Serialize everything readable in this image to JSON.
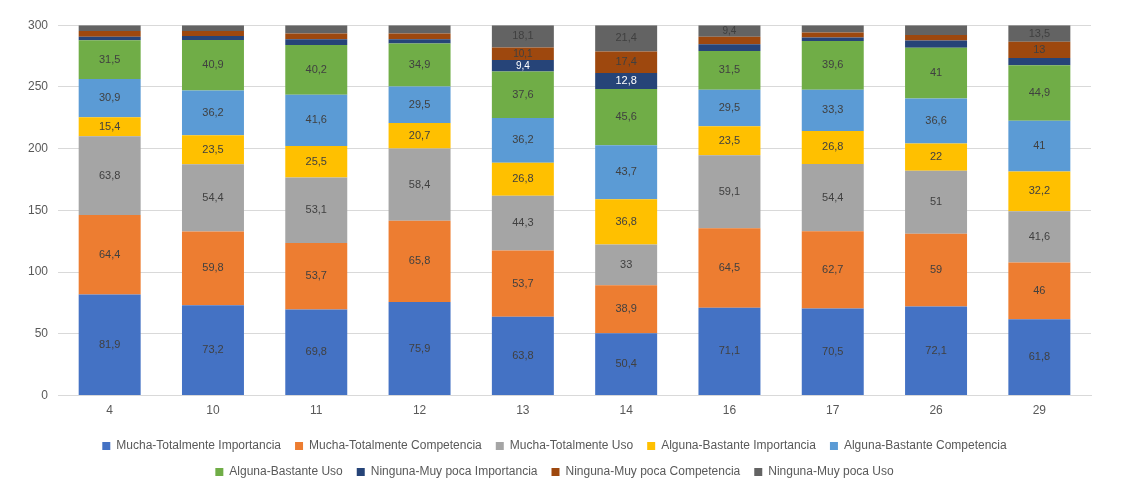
{
  "chart_data": {
    "type": "bar",
    "stacked": true,
    "categories": [
      "4",
      "10",
      "11",
      "12",
      "13",
      "14",
      "16",
      "17",
      "26",
      "29"
    ],
    "ylim": [
      0,
      300
    ],
    "yticks": [
      0,
      50,
      100,
      150,
      200,
      250,
      300
    ],
    "grid": "y",
    "legend": "bottom",
    "series": [
      {
        "name": "Mucha-Totalmente Importancia",
        "color": "#4472c4",
        "values": [
          81.9,
          73.2,
          69.8,
          75.9,
          63.8,
          50.4,
          71.1,
          70.5,
          72.1,
          61.8
        ],
        "value_labels": [
          "81,9",
          "73,2",
          "69,8",
          "75,9",
          "63,8",
          "50,4",
          "71,1",
          "70,5",
          "72,1",
          "61,8"
        ]
      },
      {
        "name": "Mucha-Totalmente Competencia",
        "color": "#ed7d31",
        "values": [
          64.4,
          59.8,
          53.7,
          65.8,
          53.7,
          38.9,
          64.5,
          62.7,
          59,
          46
        ],
        "value_labels": [
          "64,4",
          "59,8",
          "53,7",
          "65,8",
          "53,7",
          "38,9",
          "64,5",
          "62,7",
          "59",
          "46"
        ]
      },
      {
        "name": "Mucha-Totalmente Uso",
        "color": "#a5a5a5",
        "values": [
          63.8,
          54.4,
          53.1,
          58.4,
          44.3,
          33,
          59.1,
          54.4,
          51,
          41.6
        ],
        "value_labels": [
          "63,8",
          "54,4",
          "53,1",
          "58,4",
          "44,3",
          "33",
          "59,1",
          "54,4",
          "51",
          "41,6"
        ]
      },
      {
        "name": "Alguna-Bastante Importancia",
        "color": "#ffc000",
        "values": [
          15.4,
          23.5,
          25.5,
          20.7,
          26.8,
          36.8,
          23.5,
          26.8,
          22,
          32.2
        ],
        "value_labels": [
          "15,4",
          "23,5",
          "25,5",
          "20,7",
          "26,8",
          "36,8",
          "23,5",
          "26,8",
          "22",
          "32,2"
        ]
      },
      {
        "name": "Alguna-Bastante Competencia",
        "color": "#5b9bd5",
        "values": [
          30.9,
          36.2,
          41.6,
          29.5,
          36.2,
          43.7,
          29.5,
          33.3,
          36.6,
          41
        ],
        "value_labels": [
          "30,9",
          "36,2",
          "41,6",
          "29,5",
          "36,2",
          "43,7",
          "29,5",
          "33,3",
          "36,6",
          "41"
        ]
      },
      {
        "name": "Alguna-Bastante Uso",
        "color": "#70ad47",
        "values": [
          31.5,
          40.9,
          40.2,
          34.9,
          37.6,
          45.6,
          31.5,
          39.6,
          41,
          44.9
        ],
        "value_labels": [
          "31,5",
          "40,9",
          "40,2",
          "34,9",
          "37,6",
          "45,6",
          "31,5",
          "39,6",
          "41",
          "44,9"
        ]
      },
      {
        "name": "Ninguna-Muy poca Importancia",
        "color": "#264478",
        "values": [
          2.7,
          3.3,
          4.7,
          3.4,
          9.4,
          12.8,
          5.4,
          2.7,
          5.9,
          6
        ],
        "value_labels": [
          null,
          null,
          null,
          null,
          "9,4",
          "12,8",
          null,
          null,
          null,
          null
        ]
      },
      {
        "name": "Ninguna-Muy poca Competencia",
        "color": "#9e480e",
        "values": [
          4.7,
          4,
          4.7,
          4.7,
          10.1,
          17.4,
          6,
          4,
          4.4,
          13
        ],
        "value_labels": [
          null,
          null,
          null,
          null,
          "10,1",
          "17,4",
          null,
          null,
          null,
          "13"
        ]
      },
      {
        "name": "Ninguna-Muy poca Uso",
        "color": "#636363",
        "values": [
          4.7,
          4.7,
          6.7,
          6.7,
          18.1,
          21.4,
          9.4,
          6,
          8,
          13.5
        ],
        "value_labels": [
          null,
          null,
          null,
          null,
          "18,1",
          "21,4",
          "9,4",
          null,
          null,
          "13,5"
        ]
      }
    ]
  }
}
